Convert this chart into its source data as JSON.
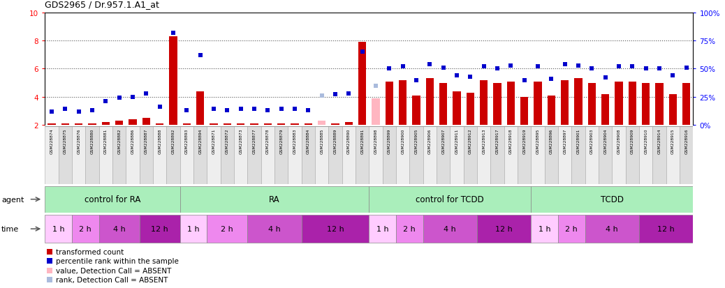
{
  "title": "GDS2965 / Dr.957.1.A1_at",
  "samples": [
    "GSM228874",
    "GSM228875",
    "GSM228876",
    "GSM228880",
    "GSM228881",
    "GSM228882",
    "GSM228886",
    "GSM228887",
    "GSM228888",
    "GSM228892",
    "GSM228893",
    "GSM228894",
    "GSM228871",
    "GSM228872",
    "GSM228873",
    "GSM228877",
    "GSM228878",
    "GSM228879",
    "GSM228883",
    "GSM228884",
    "GSM228885",
    "GSM228889",
    "GSM228890",
    "GSM228891",
    "GSM228898",
    "GSM228899",
    "GSM228900",
    "GSM228905",
    "GSM228906",
    "GSM228907",
    "GSM228911",
    "GSM228912",
    "GSM228913",
    "GSM228917",
    "GSM228918",
    "GSM228919",
    "GSM228895",
    "GSM228896",
    "GSM228897",
    "GSM228901",
    "GSM228903",
    "GSM228904",
    "GSM228908",
    "GSM228909",
    "GSM228910",
    "GSM228914",
    "GSM228915",
    "GSM228916"
  ],
  "bar_values": [
    2.1,
    2.1,
    2.1,
    2.1,
    2.2,
    2.3,
    2.4,
    2.5,
    2.1,
    8.3,
    2.1,
    4.4,
    2.1,
    2.1,
    2.1,
    2.1,
    2.1,
    2.1,
    2.1,
    2.1,
    2.3,
    2.1,
    2.2,
    7.9,
    3.9,
    5.1,
    5.2,
    4.1,
    5.3,
    5.0,
    4.4,
    4.3,
    5.2,
    5.0,
    5.1,
    4.0,
    5.1,
    4.1,
    5.2,
    5.3,
    5.0,
    4.2,
    5.1,
    5.1,
    5.0,
    5.0,
    4.2,
    5.0
  ],
  "bar_absent": [
    false,
    false,
    false,
    false,
    false,
    false,
    false,
    false,
    false,
    false,
    false,
    false,
    false,
    false,
    false,
    false,
    false,
    false,
    false,
    false,
    true,
    false,
    false,
    false,
    true,
    false,
    false,
    false,
    false,
    false,
    false,
    false,
    false,
    false,
    false,
    false,
    false,
    false,
    false,
    false,
    false,
    false,
    false,
    false,
    false,
    false,
    false,
    false
  ],
  "rank_values": [
    12,
    14,
    12,
    13,
    21,
    24,
    25,
    28,
    16,
    82,
    13,
    62,
    14,
    13,
    14,
    14,
    13,
    14,
    14,
    13,
    26,
    27,
    28,
    65,
    35,
    50,
    52,
    40,
    54,
    51,
    44,
    43,
    52,
    50,
    53,
    40,
    52,
    41,
    54,
    53,
    50,
    42,
    52,
    52,
    50,
    50,
    44,
    51
  ],
  "rank_absent": [
    false,
    false,
    false,
    false,
    false,
    false,
    false,
    false,
    false,
    false,
    false,
    false,
    false,
    false,
    false,
    false,
    false,
    false,
    false,
    false,
    true,
    false,
    false,
    false,
    true,
    false,
    false,
    false,
    false,
    false,
    false,
    false,
    false,
    false,
    false,
    false,
    false,
    false,
    false,
    false,
    false,
    false,
    false,
    false,
    false,
    false,
    false,
    false
  ],
  "agent_groups": [
    {
      "label": "control for RA",
      "start": 0,
      "end": 9,
      "color": "#AAEEBB"
    },
    {
      "label": "RA",
      "start": 10,
      "end": 23,
      "color": "#AAEEBB"
    },
    {
      "label": "control for TCDD",
      "start": 24,
      "end": 35,
      "color": "#AAEEBB"
    },
    {
      "label": "TCDD",
      "start": 36,
      "end": 47,
      "color": "#AAEEBB"
    }
  ],
  "time_groups": [
    {
      "label": "1 h",
      "start": 0,
      "end": 1,
      "color": "#FFCCFF"
    },
    {
      "label": "2 h",
      "start": 2,
      "end": 3,
      "color": "#EE88EE"
    },
    {
      "label": "4 h",
      "start": 4,
      "end": 6,
      "color": "#CC55CC"
    },
    {
      "label": "12 h",
      "start": 7,
      "end": 9,
      "color": "#AA22AA"
    },
    {
      "label": "1 h",
      "start": 10,
      "end": 11,
      "color": "#FFCCFF"
    },
    {
      "label": "2 h",
      "start": 12,
      "end": 14,
      "color": "#EE88EE"
    },
    {
      "label": "4 h",
      "start": 15,
      "end": 18,
      "color": "#CC55CC"
    },
    {
      "label": "12 h",
      "start": 19,
      "end": 23,
      "color": "#AA22AA"
    },
    {
      "label": "1 h",
      "start": 24,
      "end": 25,
      "color": "#FFCCFF"
    },
    {
      "label": "2 h",
      "start": 26,
      "end": 27,
      "color": "#EE88EE"
    },
    {
      "label": "4 h",
      "start": 28,
      "end": 31,
      "color": "#CC55CC"
    },
    {
      "label": "12 h",
      "start": 32,
      "end": 35,
      "color": "#AA22AA"
    },
    {
      "label": "1 h",
      "start": 36,
      "end": 37,
      "color": "#FFCCFF"
    },
    {
      "label": "2 h",
      "start": 38,
      "end": 39,
      "color": "#EE88EE"
    },
    {
      "label": "4 h",
      "start": 40,
      "end": 43,
      "color": "#CC55CC"
    },
    {
      "label": "12 h",
      "start": 44,
      "end": 47,
      "color": "#AA22AA"
    }
  ],
  "ylim_left": [
    2,
    10
  ],
  "ylim_right": [
    0,
    100
  ],
  "yticks_left": [
    2,
    4,
    6,
    8,
    10
  ],
  "yticks_right": [
    0,
    25,
    50,
    75,
    100
  ],
  "bar_color_normal": "#CC0000",
  "bar_color_absent": "#FFB6C1",
  "rank_color_normal": "#0000CC",
  "rank_color_absent": "#AABBDD",
  "legend_items": [
    {
      "color": "#CC0000",
      "label": "transformed count"
    },
    {
      "color": "#0000CC",
      "label": "percentile rank within the sample"
    },
    {
      "color": "#FFB6C1",
      "label": "value, Detection Call = ABSENT"
    },
    {
      "color": "#AABBDD",
      "label": "rank, Detection Call = ABSENT"
    }
  ]
}
